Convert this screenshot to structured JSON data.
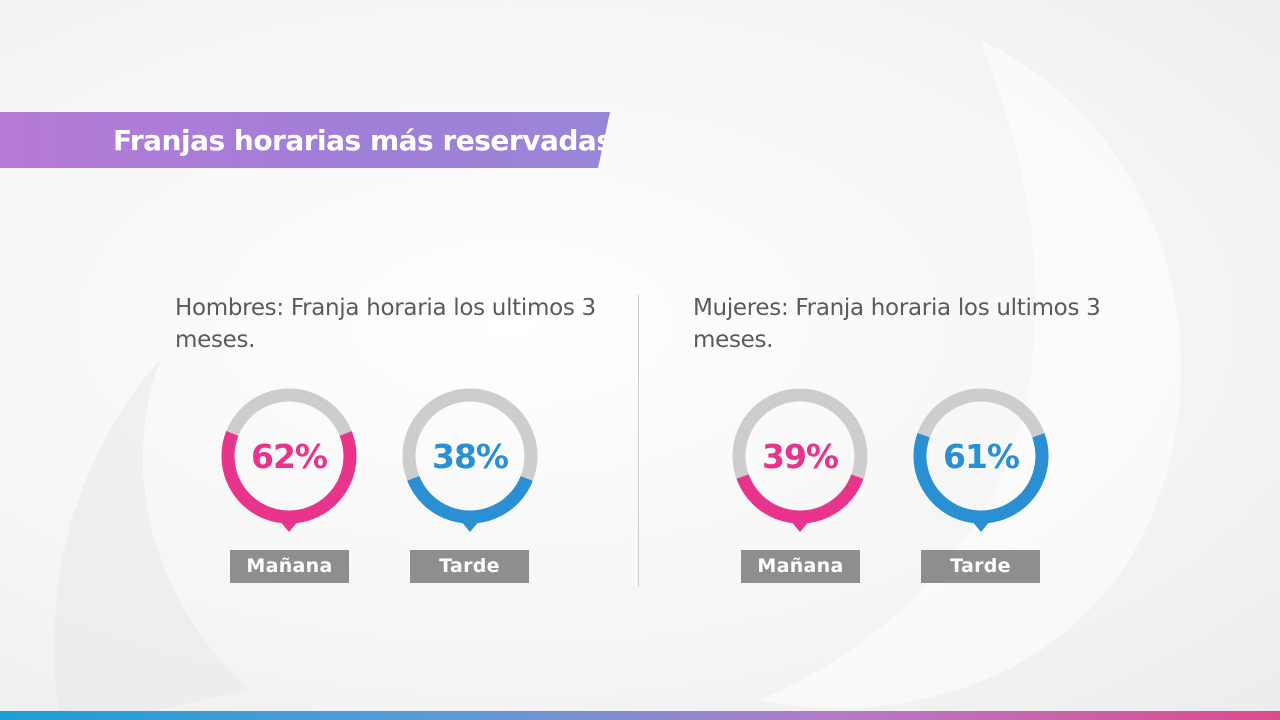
{
  "title": "Franjas horarias más reservadas",
  "colors": {
    "pink": "#e8348a",
    "blue": "#2a8fd3",
    "track": "#cdcdcd",
    "label_bg": "#8e8e8e"
  },
  "panels": [
    {
      "title": "Hombres: Franja horaria los ultimos 3 meses.",
      "gauges": [
        {
          "percent_text": "62%",
          "label": "Mañana",
          "color": "pink"
        },
        {
          "percent_text": "38%",
          "label": "Tarde",
          "color": "blue"
        }
      ]
    },
    {
      "title": "Mujeres: Franja horaria los ultimos 3 meses.",
      "gauges": [
        {
          "percent_text": "39%",
          "label": "Mañana",
          "color": "pink"
        },
        {
          "percent_text": "61%",
          "label": "Tarde",
          "color": "blue"
        }
      ]
    }
  ],
  "chart_data": [
    {
      "type": "pie",
      "title": "Hombres: Franja horaria los ultimos 3 meses.",
      "categories": [
        "Mañana",
        "Tarde"
      ],
      "values": [
        62,
        38
      ]
    },
    {
      "type": "pie",
      "title": "Mujeres: Franja horaria los ultimos 3 meses.",
      "categories": [
        "Mañana",
        "Tarde"
      ],
      "values": [
        39,
        61
      ]
    }
  ]
}
